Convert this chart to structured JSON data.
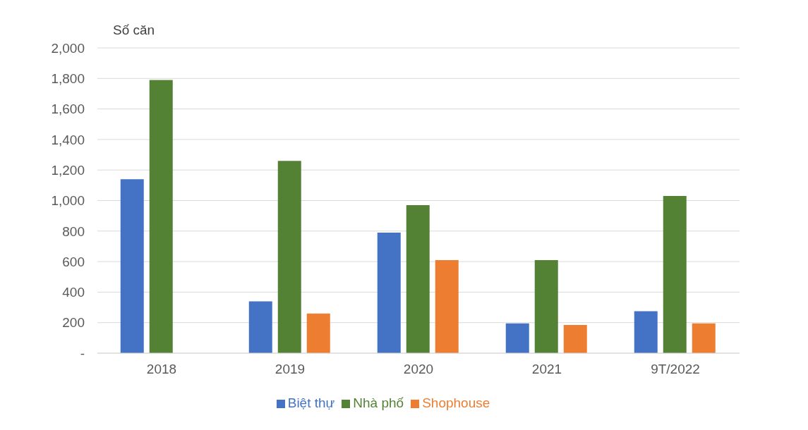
{
  "chart_data": {
    "type": "bar",
    "ylabel": "Số căn",
    "categories": [
      "2018",
      "2019",
      "2020",
      "2021",
      "9T/2022"
    ],
    "series": [
      {
        "name": "Biệt thự",
        "color": "#4472c4",
        "values": [
          1140,
          340,
          790,
          195,
          275
        ]
      },
      {
        "name": "Nhà phố",
        "color": "#548235",
        "values": [
          1790,
          1260,
          970,
          610,
          1030
        ]
      },
      {
        "name": "Shophouse",
        "color": "#ed7d31",
        "values": [
          null,
          260,
          610,
          185,
          195
        ]
      }
    ],
    "ylim": [
      0,
      2000
    ],
    "yticks": [
      {
        "value": 0,
        "label": "-"
      },
      {
        "value": 200,
        "label": "200"
      },
      {
        "value": 400,
        "label": "400"
      },
      {
        "value": 600,
        "label": "600"
      },
      {
        "value": 800,
        "label": "800"
      },
      {
        "value": 1000,
        "label": "1,000"
      },
      {
        "value": 1200,
        "label": "1,200"
      },
      {
        "value": 1400,
        "label": "1,400"
      },
      {
        "value": 1600,
        "label": "1,600"
      },
      {
        "value": 1800,
        "label": "1,800"
      },
      {
        "value": 2000,
        "label": "2,000"
      }
    ],
    "grid": "y",
    "legend": "bottom"
  }
}
